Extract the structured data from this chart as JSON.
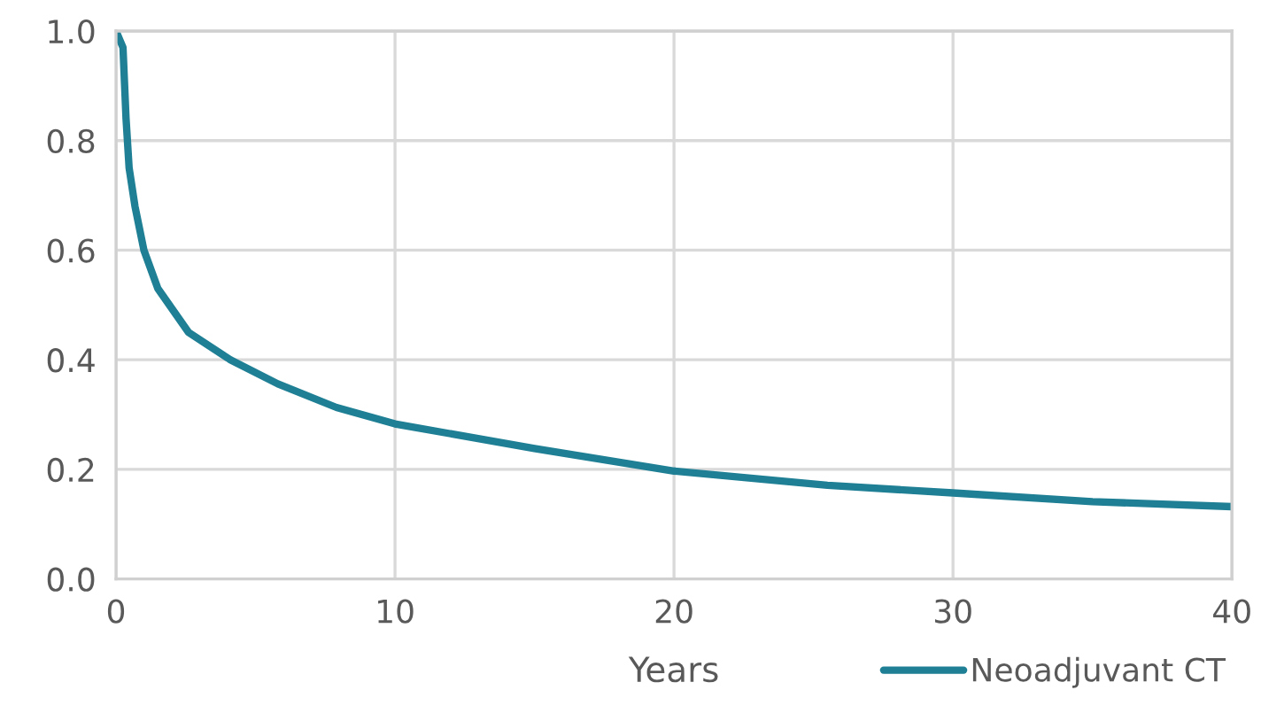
{
  "chart_data": {
    "type": "line",
    "xlabel": "Years",
    "x": [
      0,
      0.25,
      0.36,
      0.47,
      0.68,
      1.0,
      1.5,
      2.6,
      4.1,
      5.8,
      7.9,
      10,
      15,
      20,
      25.5,
      30,
      35,
      40
    ],
    "series": [
      {
        "name": "Neoadjuvant CT",
        "color": "#1f7f94",
        "values": [
          1.0,
          0.97,
          0.84,
          0.75,
          0.68,
          0.6,
          0.53,
          0.45,
          0.4,
          0.356,
          0.313,
          0.283,
          0.238,
          0.197,
          0.171,
          0.157,
          0.141,
          0.132
        ]
      }
    ],
    "xlim": [
      0,
      40
    ],
    "xticks": [
      0,
      10,
      20,
      30,
      40
    ],
    "ylim": [
      0,
      1.0
    ],
    "yticks": [
      {
        "value": 0,
        "label": "0.0"
      },
      {
        "value": 0.2,
        "label": "0.2"
      },
      {
        "value": 0.4,
        "label": "0.4"
      },
      {
        "value": 0.6,
        "label": "0.6"
      },
      {
        "value": 0.8,
        "label": "0.8"
      },
      {
        "value": 1.0,
        "label": "1.0"
      }
    ],
    "grid": true,
    "legend": "bottom right",
    "marker": "none",
    "line_style": "solid"
  }
}
